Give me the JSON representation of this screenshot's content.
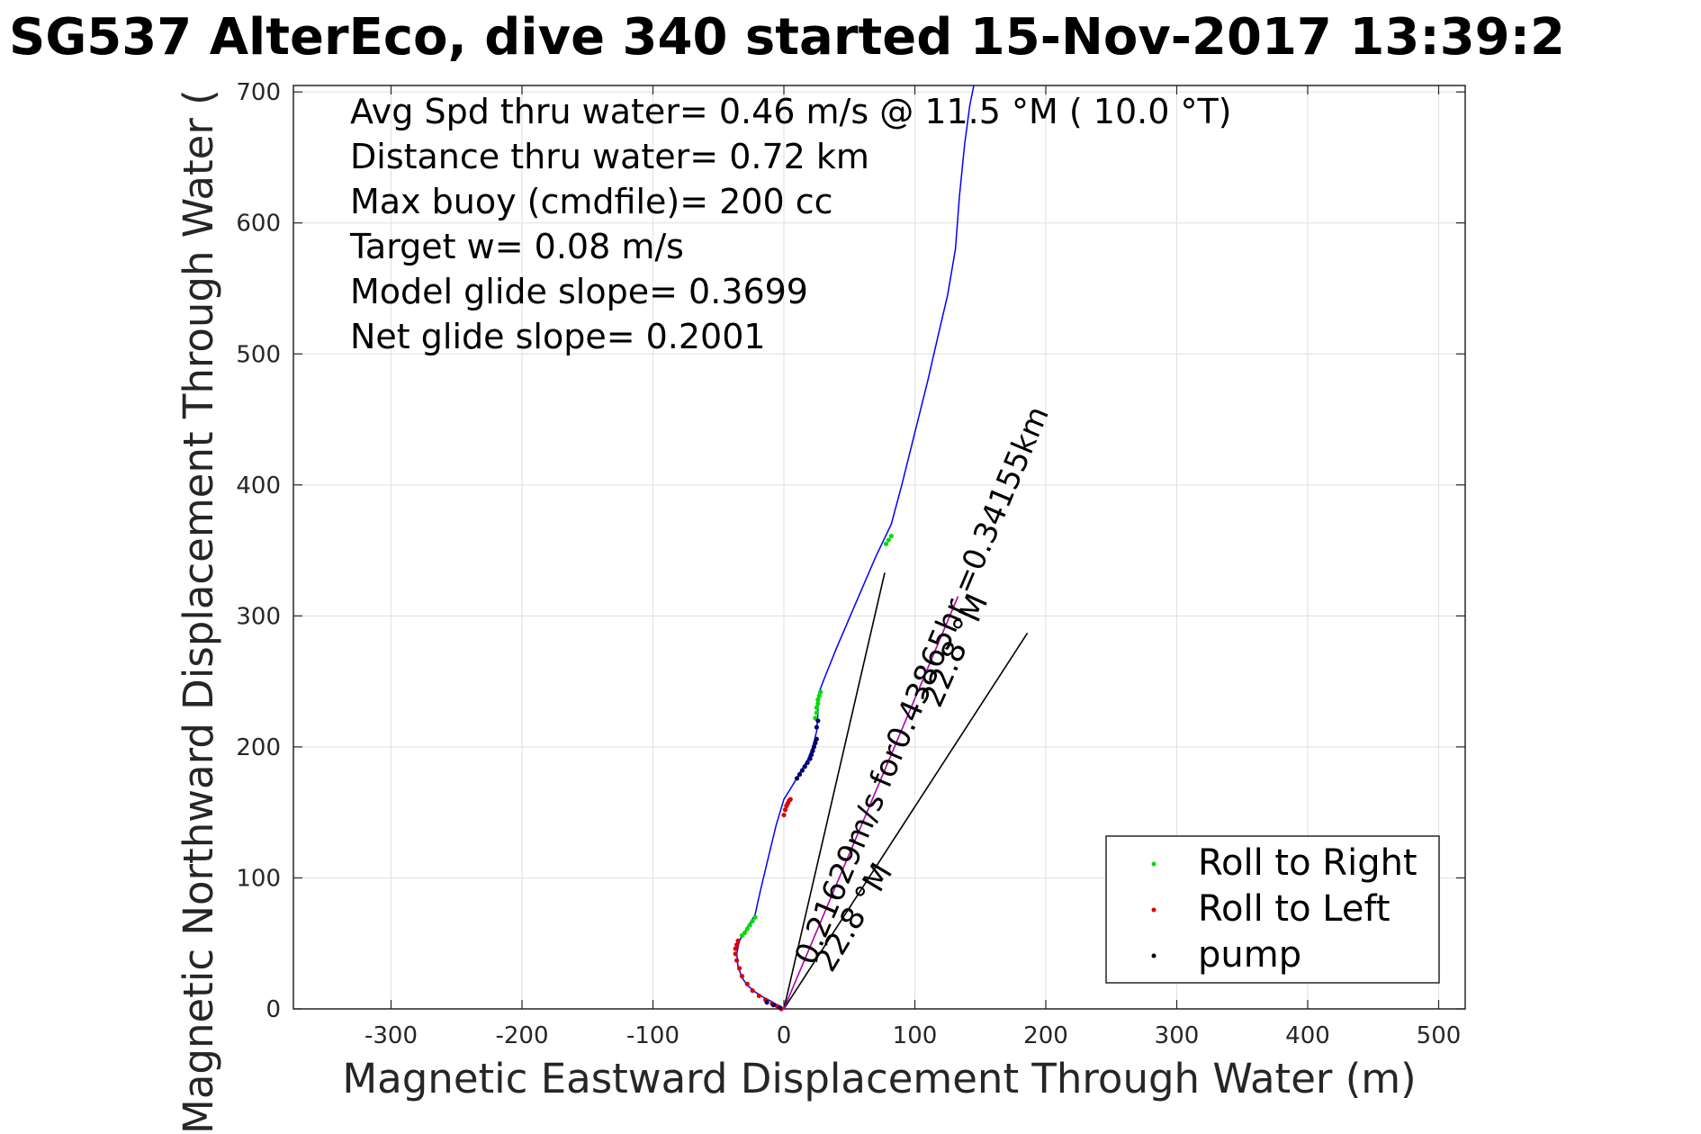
{
  "chart_data": {
    "type": "scatter",
    "title": "SG537 AlterEco, dive 340 started 15-Nov-2017 13:39:2",
    "xlabel": "Magnetic Eastward Displacement Through Water (m)",
    "ylabel": "Magnetic Northward Displacement Through Water (",
    "xlim": [
      -375,
      520
    ],
    "ylim": [
      0,
      705
    ],
    "xticks": [
      -300,
      -200,
      -100,
      0,
      100,
      200,
      300,
      400,
      500
    ],
    "yticks": [
      0,
      100,
      200,
      300,
      400,
      500,
      600,
      700
    ],
    "grid": true,
    "legend_position": "bottom-right",
    "colors": {
      "track": "#0000ff",
      "roll_right": "#00dd00",
      "roll_left": "#dd0000",
      "pump": "#000066",
      "vector": "#000000",
      "arrow": "#b000b0"
    },
    "annotations": [
      "Avg Spd thru water=  0.46 m/s @  11.5 °M ( 10.0 °T)",
      "Distance thru water=  0.72 km",
      "Max buoy (cmdfile)= 200 cc",
      "Target w= 0.08 m/s",
      "Model glide slope= 0.3699",
      "Net glide slope= 0.2001"
    ],
    "vector_labels": {
      "current": "0.21629m/s for0.43865hr =0.34155km",
      "heading_1": "22.8 °M",
      "heading_2": "22.8 °M"
    },
    "legend": [
      {
        "label": "Roll to Right",
        "color": "#00dd00"
      },
      {
        "label": "Roll to Left",
        "color": "#dd0000"
      },
      {
        "label": "pump",
        "color": "#000000"
      }
    ],
    "track": {
      "name": "track",
      "x": [
        0,
        -5,
        -10,
        -16,
        -22,
        -28,
        -32,
        -35,
        -36,
        -34,
        -28,
        -22,
        -18,
        -12,
        -6,
        0,
        5,
        8,
        12,
        18,
        22,
        25,
        26,
        26,
        27,
        30,
        40,
        55,
        70,
        82,
        90,
        100,
        110,
        118,
        125,
        131,
        134,
        138,
        142,
        145
      ],
      "y": [
        0,
        3,
        6,
        9,
        13,
        18,
        24,
        32,
        42,
        52,
        62,
        72,
        90,
        115,
        140,
        160,
        168,
        173,
        180,
        190,
        200,
        212,
        225,
        235,
        242,
        250,
        275,
        310,
        345,
        370,
        400,
        440,
        480,
        515,
        545,
        580,
        620,
        660,
        690,
        710
      ]
    },
    "roll_right": {
      "x": [
        -32,
        -30,
        -28,
        -26,
        -24,
        -22,
        24,
        25,
        25,
        26,
        26,
        27,
        28,
        78,
        80,
        82
      ],
      "y": [
        56,
        58,
        61,
        64,
        67,
        70,
        222,
        226,
        230,
        233,
        236,
        239,
        242,
        355,
        358,
        361
      ]
    },
    "roll_left": {
      "x": [
        -2,
        -5,
        -9,
        -14,
        -19,
        -24,
        -28,
        -32,
        -34,
        -36,
        -37,
        -37,
        -36,
        -35,
        0,
        1,
        2,
        3,
        4,
        5
      ],
      "y": [
        0,
        2,
        4,
        7,
        10,
        14,
        19,
        25,
        31,
        37,
        42,
        46,
        49,
        52,
        148,
        152,
        155,
        157,
        159,
        160
      ]
    },
    "pump": {
      "x": [
        -3,
        -8,
        -13,
        10,
        12,
        14,
        16,
        18,
        20,
        21,
        22,
        23,
        24,
        25,
        25,
        26
      ],
      "y": [
        1,
        3,
        5,
        176,
        179,
        182,
        185,
        188,
        191,
        194,
        197,
        200,
        203,
        206,
        215,
        220
      ]
    },
    "vectors": [
      {
        "name": "current-vector",
        "from": [
          0,
          0
        ],
        "to": [
          77,
          333
        ]
      },
      {
        "name": "heading-vector",
        "from": [
          0,
          0
        ],
        "to": [
          186,
          287
        ]
      }
    ],
    "arrow": {
      "from": [
        0,
        0
      ],
      "to": [
        133,
        315
      ]
    }
  }
}
